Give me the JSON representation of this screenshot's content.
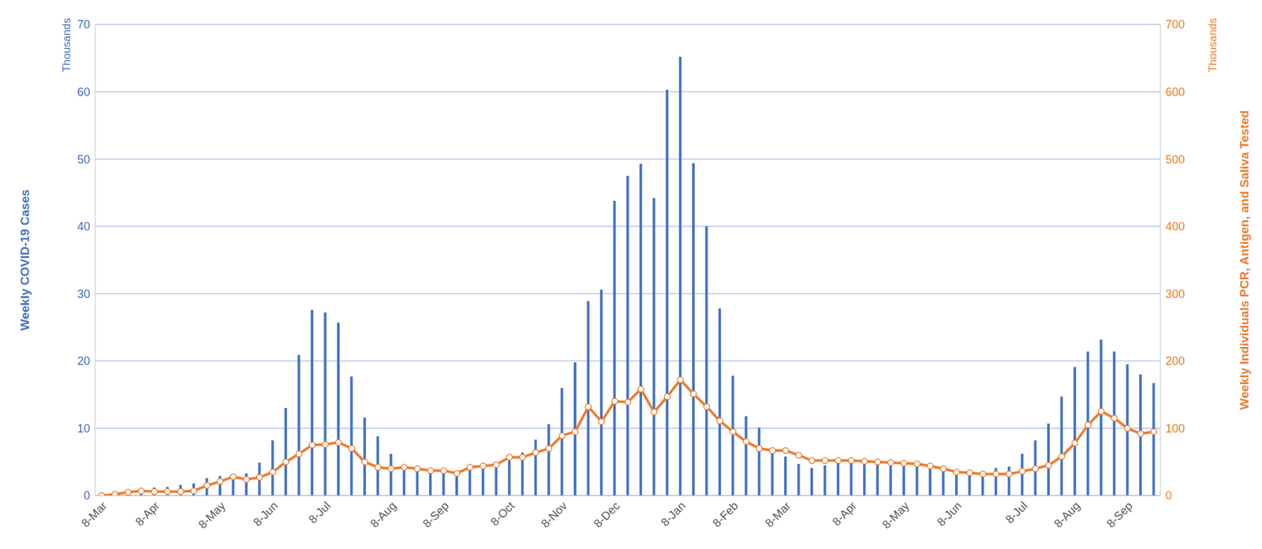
{
  "chart_data": {
    "type": "bar",
    "y_label": "Weekly COVID-19 Cases",
    "y_units": "Thousands",
    "y2_label": "Weekly Individuals PCR, Antigen, and Saliva Tested",
    "y2_units": "Thousands",
    "categories": [
      "8-Mar",
      null,
      null,
      null,
      "8-Apr",
      null,
      null,
      null,
      null,
      "8-May",
      null,
      null,
      null,
      "8-Jun",
      null,
      null,
      null,
      "8-Jul",
      null,
      null,
      null,
      null,
      "8-Aug",
      null,
      null,
      null,
      "8-Sep",
      null,
      null,
      null,
      null,
      "8-Oct",
      null,
      null,
      null,
      "8-Nov",
      null,
      null,
      null,
      "8-Dec",
      null,
      null,
      null,
      null,
      "8-Jan",
      null,
      null,
      null,
      "8-Feb",
      null,
      null,
      null,
      "8-Mar",
      null,
      null,
      null,
      null,
      "8-Apr",
      null,
      null,
      null,
      "8-May",
      null,
      null,
      null,
      "8-Jun",
      null,
      null,
      null,
      null,
      "8-Jul",
      null,
      null,
      null,
      "8-Aug",
      null,
      null,
      null,
      "8-Sep",
      null,
      null
    ],
    "series": [
      {
        "type": "bar",
        "color": "#4472c4",
        "values": [
          0,
          0.1,
          0.3,
          0.6,
          1.2,
          1.3,
          1.6,
          1.8,
          2.6,
          2.9,
          2.5,
          3.3,
          4.9,
          8.2,
          13.0,
          20.9,
          27.6,
          27.2,
          25.7,
          17.7,
          11.6,
          8.8,
          6.2,
          4.5,
          4.0,
          3.8,
          3.6,
          3.4,
          4.0,
          4.2,
          4.8,
          5.3,
          6.4,
          8.3,
          10.6,
          16.0,
          19.8,
          28.9,
          30.6,
          43.8,
          47.5,
          49.3,
          44.2,
          60.3,
          65.2,
          49.4,
          40.0,
          27.8,
          17.8,
          11.8,
          10.1,
          7.0,
          5.8,
          4.7,
          4.1,
          4.5,
          5.0,
          5.3,
          5.3,
          5.2,
          5.0,
          4.8,
          4.4,
          4.2,
          3.6,
          3.3,
          3.2,
          3.0,
          4.1,
          4.3,
          6.2,
          8.2,
          10.7,
          14.7,
          19.1,
          21.4,
          23.2,
          21.4,
          19.5,
          18.0,
          16.7
        ]
      },
      {
        "type": "line",
        "axis": "y2",
        "color": "#ed7d31",
        "marker": "circle",
        "values": [
          0,
          2,
          5,
          7,
          6,
          6,
          6,
          7,
          15,
          21,
          28,
          24,
          27,
          35,
          50,
          62,
          75,
          76,
          79,
          70,
          50,
          42,
          40,
          42,
          40,
          37,
          37,
          33,
          42,
          44,
          46,
          57,
          57,
          64,
          70,
          89,
          95,
          132,
          110,
          140,
          139,
          158,
          124,
          147,
          172,
          151,
          132,
          111,
          95,
          80,
          70,
          67,
          67,
          60,
          52,
          52,
          52,
          52,
          51,
          50,
          49,
          48,
          47,
          44,
          40,
          35,
          34,
          32,
          32,
          32,
          36,
          40,
          45,
          58,
          78,
          105,
          125,
          115,
          100,
          92,
          95
        ]
      }
    ],
    "ylim": [
      0,
      70
    ],
    "yticks": [
      0,
      10,
      20,
      30,
      40,
      50,
      60,
      70
    ],
    "y2lim": [
      0,
      700
    ],
    "y2ticks": [
      0,
      100,
      200,
      300,
      400,
      500,
      600,
      700
    ],
    "grid": true
  }
}
